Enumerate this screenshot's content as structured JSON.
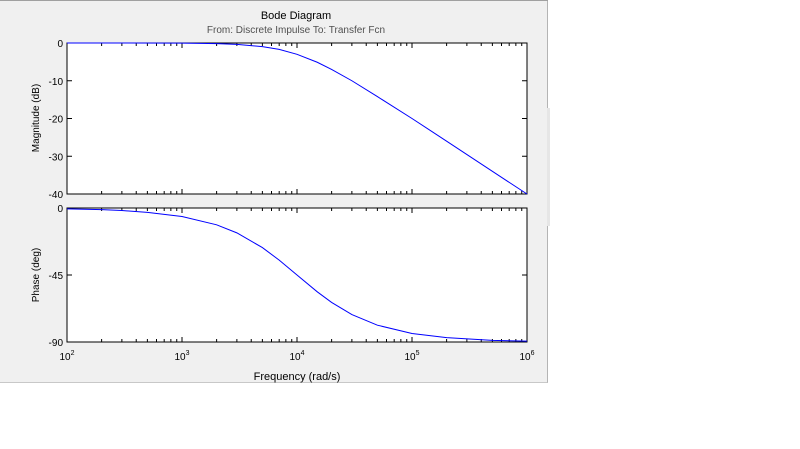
{
  "window": {
    "title": "Bode Diagram",
    "subtitle": "From: Discrete  Impulse  To: Transfer Fcn"
  },
  "chart_data": [
    {
      "type": "line",
      "panel": "magnitude",
      "ylabel": "Magnitude (dB)",
      "xscale": "log",
      "xlim": [
        100,
        1000000
      ],
      "ylim": [
        -40,
        0
      ],
      "yticks": [
        "0",
        "-10",
        "-20",
        "-30",
        "-40"
      ],
      "grid": false,
      "series": [
        {
          "color": "#0000ff",
          "x": [
            100,
            300,
            1000,
            2000,
            3000,
            5000,
            7000,
            10000,
            15000,
            20000,
            30000,
            50000,
            100000,
            200000,
            500000,
            1000000
          ],
          "y": [
            0,
            0,
            -0.04,
            -0.17,
            -0.37,
            -0.97,
            -1.7,
            -3.0,
            -5.1,
            -7.0,
            -10.0,
            -14.2,
            -20.0,
            -26.0,
            -34.0,
            -40.0
          ]
        }
      ]
    },
    {
      "type": "line",
      "panel": "phase",
      "ylabel": "Phase (deg)",
      "xlabel": "Frequency  (rad/s)",
      "xscale": "log",
      "xlim": [
        100,
        1000000
      ],
      "ylim": [
        -90,
        0
      ],
      "yticks": [
        "0",
        "-45",
        "-90"
      ],
      "xticks": [
        {
          "base": "10",
          "exp": "2"
        },
        {
          "base": "10",
          "exp": "3"
        },
        {
          "base": "10",
          "exp": "4"
        },
        {
          "base": "10",
          "exp": "5"
        },
        {
          "base": "10",
          "exp": "6"
        }
      ],
      "grid": false,
      "series": [
        {
          "color": "#0000ff",
          "x": [
            100,
            200,
            300,
            500,
            1000,
            2000,
            3000,
            5000,
            7000,
            10000,
            15000,
            20000,
            30000,
            50000,
            100000,
            200000,
            500000,
            1000000
          ],
          "y": [
            -0.6,
            -1.1,
            -1.7,
            -2.9,
            -5.7,
            -11.3,
            -16.7,
            -26.6,
            -35.0,
            -45.0,
            -56.3,
            -63.4,
            -71.6,
            -78.7,
            -84.3,
            -87.1,
            -88.9,
            -89.4
          ]
        }
      ]
    }
  ]
}
